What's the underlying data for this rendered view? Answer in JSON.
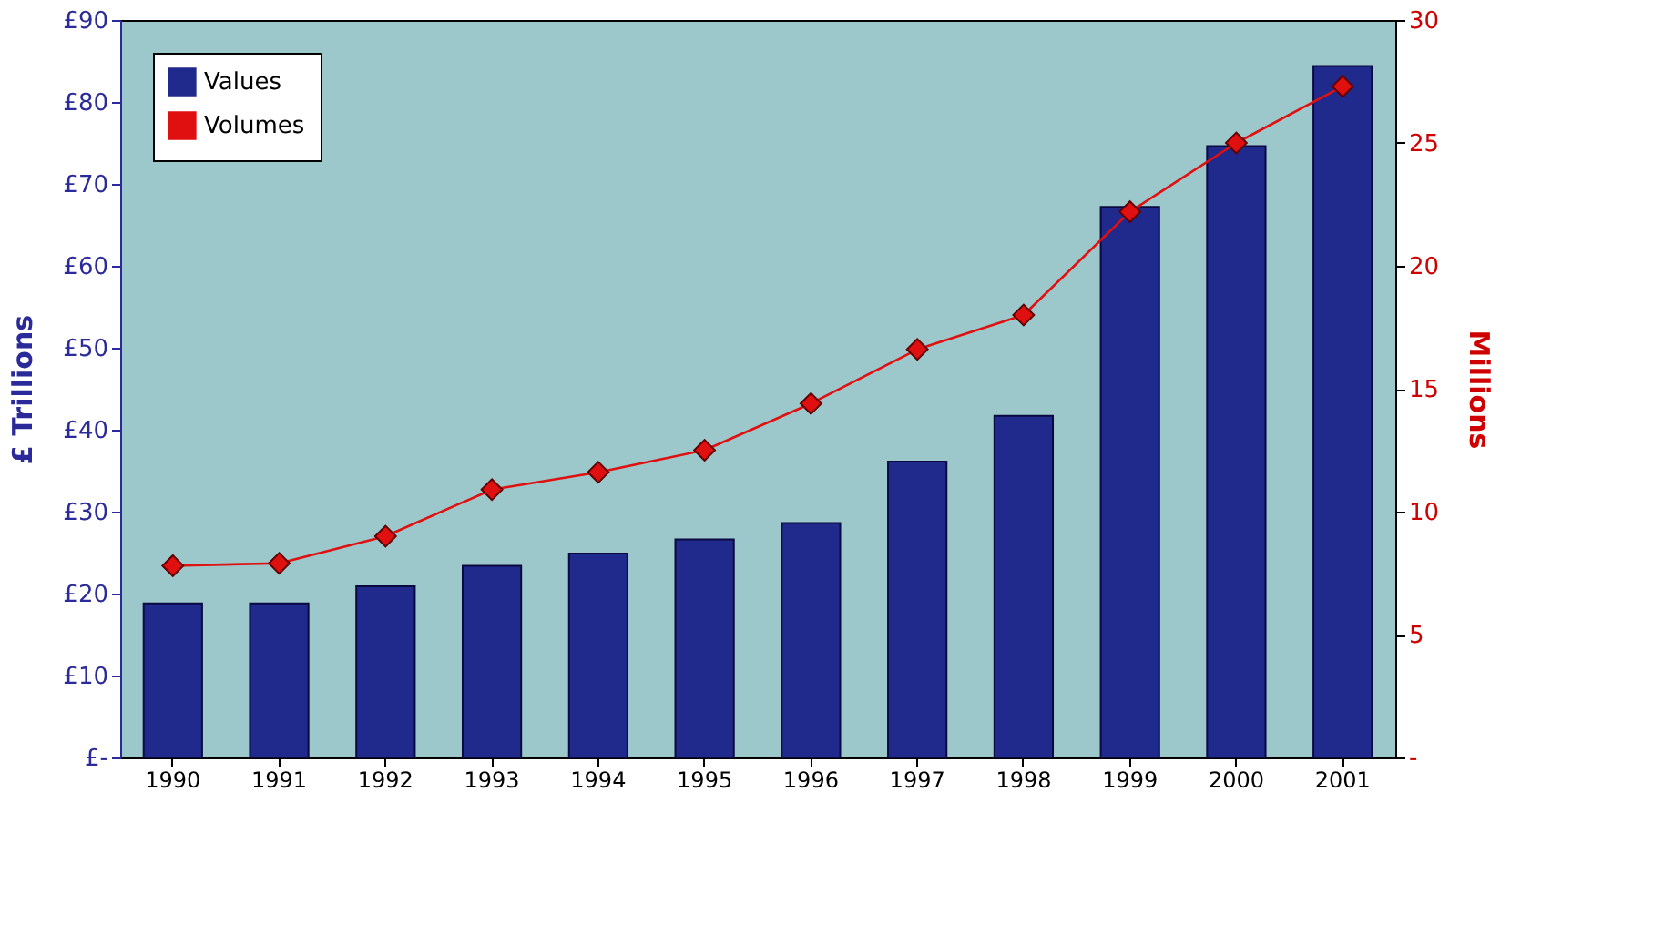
{
  "chart_data": {
    "type": "bar",
    "categories": [
      "1990",
      "1991",
      "1992",
      "1993",
      "1994",
      "1995",
      "1996",
      "1997",
      "1998",
      "1999",
      "2000",
      "2001"
    ],
    "series": [
      {
        "name": "Values",
        "color": "#1f2a8c",
        "values": [
          18.8,
          18.8,
          20.9,
          23.4,
          24.9,
          26.6,
          28.6,
          36.1,
          41.7,
          67.2,
          74.6,
          84.4
        ]
      },
      {
        "name": "Volumes",
        "type": "line",
        "axis": "y2",
        "color": "#e01010",
        "marker": "diamond",
        "values": [
          7.8,
          7.9,
          9.0,
          10.9,
          11.6,
          12.5,
          14.4,
          16.6,
          18.0,
          22.2,
          25.0,
          27.3
        ]
      }
    ],
    "ylabel": "£ Trillions",
    "y2label": "Millions",
    "ylim": [
      0,
      90
    ],
    "yticks": [
      {
        "value": 0,
        "label": "£-"
      },
      {
        "value": 10,
        "label": "£10"
      },
      {
        "value": 20,
        "label": "£20"
      },
      {
        "value": 30,
        "label": "£30"
      },
      {
        "value": 40,
        "label": "£40"
      },
      {
        "value": 50,
        "label": "£50"
      },
      {
        "value": 60,
        "label": "£60"
      },
      {
        "value": 70,
        "label": "£70"
      },
      {
        "value": 80,
        "label": "£80"
      },
      {
        "value": 90,
        "label": "£90"
      }
    ],
    "y2lim": [
      0,
      30
    ],
    "y2ticks": [
      {
        "value": 0,
        "label": "-"
      },
      5,
      10,
      15,
      20,
      25,
      30
    ],
    "grid": false,
    "legend": "top left"
  }
}
